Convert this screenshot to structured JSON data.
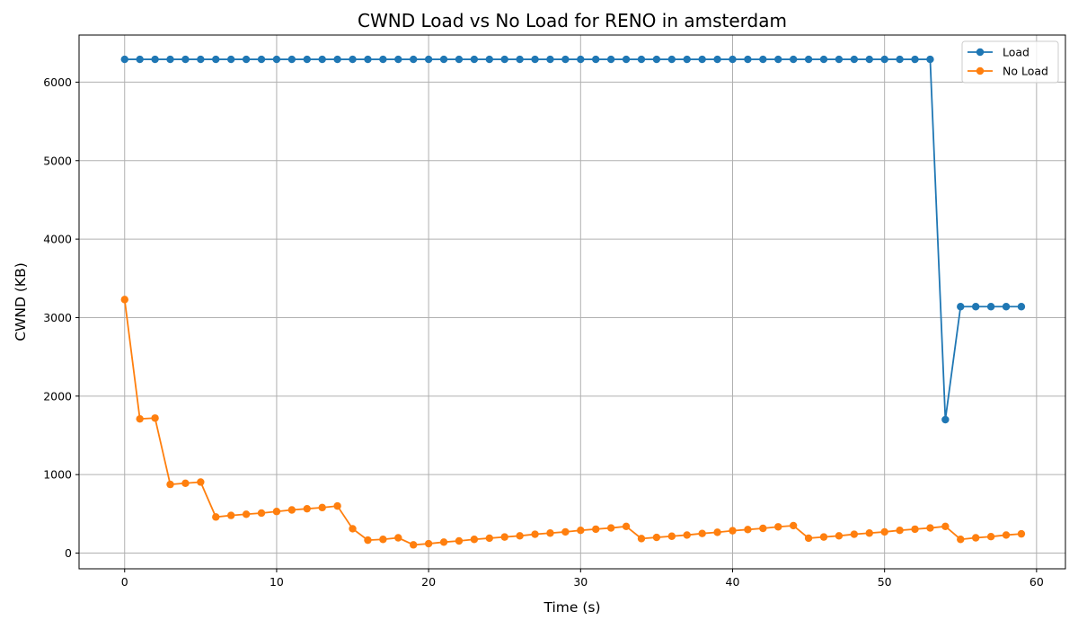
{
  "chart_data": {
    "type": "line",
    "title": "CWND Load vs No Load for RENO in amsterdam",
    "xlabel": "Time (s)",
    "ylabel": "CWND (KB)",
    "xlim": [
      -3,
      61.9
    ],
    "ylim": [
      -200,
      6600
    ],
    "xticks": [
      0,
      10,
      20,
      30,
      40,
      50,
      60
    ],
    "yticks": [
      0,
      1000,
      2000,
      3000,
      4000,
      5000,
      6000
    ],
    "grid": true,
    "legend_position": "top-right",
    "series": [
      {
        "name": "Load",
        "color": "#1f77b4",
        "x": [
          0,
          1,
          2,
          3,
          4,
          5,
          6,
          7,
          8,
          9,
          10,
          11,
          12,
          13,
          14,
          15,
          16,
          17,
          18,
          19,
          20,
          21,
          22,
          23,
          24,
          25,
          26,
          27,
          28,
          29,
          30,
          31,
          32,
          33,
          34,
          35,
          36,
          37,
          38,
          39,
          40,
          41,
          42,
          43,
          44,
          45,
          46,
          47,
          48,
          49,
          50,
          51,
          52,
          53,
          54,
          55,
          56,
          57,
          58,
          59
        ],
        "y": [
          6290,
          6290,
          6290,
          6290,
          6290,
          6290,
          6290,
          6290,
          6290,
          6290,
          6290,
          6290,
          6290,
          6290,
          6290,
          6290,
          6290,
          6290,
          6290,
          6290,
          6290,
          6290,
          6290,
          6290,
          6290,
          6290,
          6290,
          6290,
          6290,
          6290,
          6290,
          6290,
          6290,
          6290,
          6290,
          6290,
          6290,
          6290,
          6290,
          6290,
          6290,
          6290,
          6290,
          6290,
          6290,
          6290,
          6290,
          6290,
          6290,
          6290,
          6290,
          6290,
          6290,
          6290,
          1700,
          3140,
          3140,
          3140,
          3140,
          3140
        ]
      },
      {
        "name": "No Load",
        "color": "#ff7f0e",
        "x": [
          0,
          1,
          2,
          3,
          4,
          5,
          6,
          7,
          8,
          9,
          10,
          11,
          12,
          13,
          14,
          15,
          16,
          17,
          18,
          19,
          20,
          21,
          22,
          23,
          24,
          25,
          26,
          27,
          28,
          29,
          30,
          31,
          32,
          33,
          34,
          35,
          36,
          37,
          38,
          39,
          40,
          41,
          42,
          43,
          44,
          45,
          46,
          47,
          48,
          49,
          50,
          51,
          52,
          53,
          54,
          55,
          56,
          57,
          58,
          59
        ],
        "y": [
          3230,
          1710,
          1720,
          875,
          890,
          905,
          460,
          480,
          495,
          510,
          530,
          550,
          565,
          580,
          600,
          310,
          165,
          175,
          195,
          105,
          120,
          140,
          155,
          175,
          190,
          205,
          220,
          240,
          255,
          270,
          290,
          305,
          320,
          340,
          185,
          200,
          215,
          230,
          250,
          265,
          285,
          300,
          315,
          335,
          350,
          190,
          205,
          220,
          240,
          255,
          270,
          290,
          305,
          320,
          340,
          175,
          195,
          210,
          230,
          245
        ]
      }
    ]
  }
}
